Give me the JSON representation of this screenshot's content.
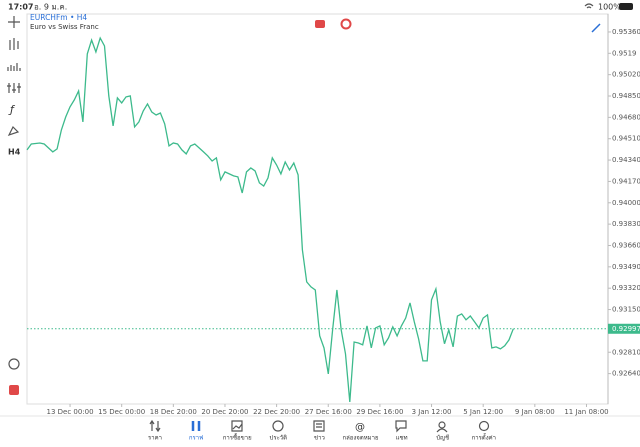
{
  "status_bar": {
    "time": "17:07",
    "date": "อ. 9 ม.ค.",
    "battery": "100%"
  },
  "toolbar": {
    "timeframe": "H4"
  },
  "chart_data": {
    "type": "line",
    "title": "EURCHFm • H4",
    "subtitle": "Euro vs Swiss Franc",
    "color": "#3dba8c",
    "x": [
      0,
      1,
      3,
      4,
      6,
      7,
      8,
      9,
      10,
      11,
      12,
      13,
      14,
      15,
      16,
      17,
      18,
      19,
      20,
      21,
      22,
      23,
      24,
      25,
      26,
      27,
      28,
      29,
      30,
      31,
      32,
      33,
      34,
      35,
      36,
      37,
      38,
      39,
      40,
      41,
      42,
      43,
      44,
      45,
      46,
      47,
      48,
      49,
      50,
      51,
      52,
      53,
      54,
      55,
      56,
      57,
      58,
      59,
      60,
      61,
      62,
      63,
      64,
      65,
      66,
      67,
      68,
      69,
      70,
      71,
      72,
      73,
      74,
      75,
      76,
      77,
      78,
      79,
      80,
      81,
      82,
      83,
      84,
      85,
      86,
      87,
      88,
      89,
      90,
      91,
      92,
      93,
      94,
      95,
      96,
      97,
      98,
      99,
      100,
      101,
      102,
      103,
      104,
      105,
      106,
      107,
      108,
      109,
      110,
      111,
      112,
      113
    ],
    "values": [
      0.94421,
      0.94468,
      0.94476,
      0.94468,
      0.94405,
      0.94429,
      0.9458,
      0.94683,
      0.94763,
      0.94819,
      0.9489,
      0.94644,
      0.95185,
      0.95296,
      0.95201,
      0.95312,
      0.95249,
      0.94851,
      0.94612,
      0.94835,
      0.94795,
      0.94843,
      0.94851,
      0.94604,
      0.94644,
      0.94731,
      0.94787,
      0.94723,
      0.94699,
      0.94715,
      0.94628,
      0.94453,
      0.94476,
      0.94468,
      0.94421,
      0.94389,
      0.94453,
      0.94468,
      0.94437,
      0.94405,
      0.94373,
      0.94333,
      0.94357,
      0.94182,
      0.94246,
      0.9423,
      0.94214,
      0.94206,
      0.94078,
      0.94246,
      0.94277,
      0.94254,
      0.94158,
      0.94134,
      0.94198,
      0.94357,
      0.94301,
      0.9423,
      0.94325,
      0.94262,
      0.94317,
      0.94222,
      0.93625,
      0.9337,
      0.9333,
      0.93306,
      0.9294,
      0.92845,
      0.92638,
      0.92988,
      0.93306,
      0.92988,
      0.92797,
      0.92415,
      0.92892,
      0.92884,
      0.92869,
      0.9302,
      0.92845,
      0.93004,
      0.9302,
      0.92869,
      0.92924,
      0.93012,
      0.9294,
      0.9302,
      0.93083,
      0.93203,
      0.93052,
      0.92916,
      0.92741,
      0.92741,
      0.93227,
      0.93314,
      0.93052,
      0.92877,
      0.92988,
      0.92853,
      0.93099,
      0.93115,
      0.93068,
      0.93099,
      0.93052,
      0.93004,
      0.93083,
      0.93107,
      0.92845,
      0.92853,
      0.92837,
      0.92861,
      0.92908,
      0.92997
    ],
    "current_price": 0.92997,
    "xlim": [
      0,
      135
    ],
    "xticks": [
      {
        "value": 10,
        "label": "13 Dec 00:00"
      },
      {
        "value": 22,
        "label": "15 Dec 00:00"
      },
      {
        "value": 34,
        "label": "18 Dec 20:00"
      },
      {
        "value": 46,
        "label": "20 Dec 20:00"
      },
      {
        "value": 58,
        "label": "22 Dec 20:00"
      },
      {
        "value": 70,
        "label": "27 Dec 16:00"
      },
      {
        "value": 82,
        "label": "29 Dec 16:00"
      },
      {
        "value": 94,
        "label": "3 Jan 12:00"
      },
      {
        "value": 106,
        "label": "5 Jan 12:00"
      },
      {
        "value": 118,
        "label": "9 Jan 08:00"
      },
      {
        "value": 130,
        "label": "11 Jan 08:00"
      }
    ],
    "ylim": [
      0.92398,
      0.95503
    ],
    "yticks": [
      {
        "value": 0.9536,
        "label": "0.95360"
      },
      0.9519,
      {
        "value": 0.9502,
        "label": "0.95020"
      },
      {
        "value": 0.9485,
        "label": "0.94850"
      },
      {
        "value": 0.9468,
        "label": "0.94680"
      },
      {
        "value": 0.9451,
        "label": "0.94510"
      },
      {
        "value": 0.9434,
        "label": "0.94340"
      },
      {
        "value": 0.9417,
        "label": "0.94170"
      },
      {
        "value": 0.94,
        "label": "0.94000"
      },
      {
        "value": 0.9383,
        "label": "0.93830"
      },
      {
        "value": 0.9366,
        "label": "0.93660"
      },
      {
        "value": 0.9349,
        "label": "0.93490"
      },
      {
        "value": 0.9332,
        "label": "0.93320"
      },
      {
        "value": 0.9315,
        "label": "0.93150"
      },
      {
        "value": 0.9281,
        "label": "0.92810"
      },
      {
        "value": 0.9264,
        "label": "0.92640"
      }
    ]
  },
  "tab_bar": {
    "tabs": [
      "ราคา",
      "กราฟ",
      "การซื้อขาย",
      "ประวัติ",
      "ข่าว",
      "กล่องจดหมาย",
      "แชท",
      "บัญชี",
      "การตั้งค่า"
    ]
  }
}
